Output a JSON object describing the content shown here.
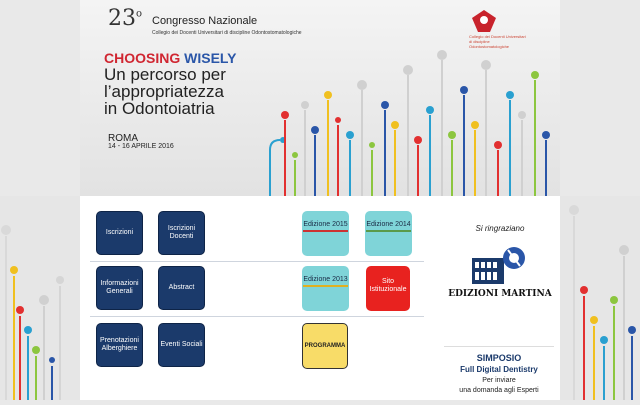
{
  "banner": {
    "number": "23",
    "number_sup": "o",
    "title": "Congresso Nazionale",
    "subtitle": "Collegio dei Docenti Universitari di discipline Odontostomatologiche",
    "choosing": "CHOOSING",
    "wisely": "WISELY",
    "line1": "Un percorso per",
    "line2": "l’appropriatezza",
    "line3": "in Odontoiatria",
    "city": "ROMA",
    "dates": "14 - 16 APRILE 2016",
    "logo_text": "Collegio dei Docenti Universitari di discipline Odontostomatologiche"
  },
  "buttons": {
    "iscrizioni": "Iscrizioni",
    "iscrizioni_docenti": "Iscrizioni Docenti",
    "informazioni": "Informazioni Generali",
    "abstract": "Abstract",
    "prenotazioni": "Prenotazioni Alberghiere",
    "eventi": "Eventi Sociali",
    "ed2015": "Edizione 2015",
    "ed2014": "Edizione 2014",
    "ed2013": "Edizione 2013",
    "sito": "Sito Istituzionale",
    "programma": "PROGRAMMA"
  },
  "sponsor": {
    "thanks": "Si ringraziano",
    "name": "EDIZIONI MARTINA"
  },
  "simposio": {
    "title": "SIMPOSIO",
    "subtitle": "Full Digital Dentistry",
    "text1": "Per inviare",
    "text2": "una domanda agli Esperti"
  },
  "colors": {
    "navy": "#1b3a6b",
    "teal": "#7fd4d8",
    "red": "#e8221f",
    "yellow": "#f8dc68"
  }
}
